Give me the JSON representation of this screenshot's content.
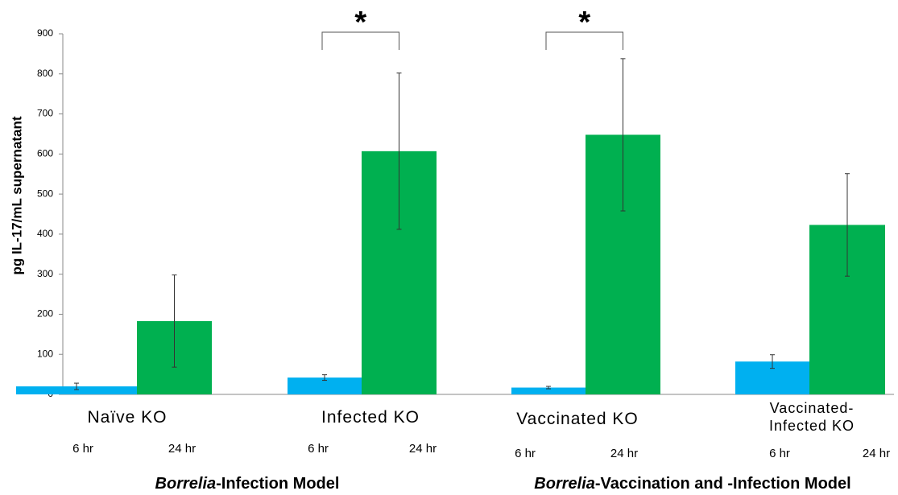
{
  "chart_data": {
    "type": "bar",
    "y_label": "pg IL-17/mL supernatant",
    "categories": [
      "Naïve KO",
      "Infected KO",
      "Vaccinated KO",
      "Vaccinated-Infected KO"
    ],
    "series": [
      {
        "name": "6 hr",
        "color": "#00b0f0",
        "values": [
          20,
          42,
          17,
          82
        ],
        "errors": [
          8,
          7,
          3,
          17
        ]
      },
      {
        "name": "24 hr",
        "color": "#00b050",
        "values": [
          183,
          607,
          648,
          423
        ],
        "errors": [
          115,
          195,
          190,
          128
        ]
      }
    ],
    "ylim": [
      0,
      900
    ],
    "yticks": [
      0,
      100,
      200,
      300,
      400,
      500,
      600,
      700,
      800,
      900
    ],
    "significance": [
      {
        "category": 1,
        "text": "*"
      },
      {
        "category": 2,
        "text": "*"
      }
    ],
    "model_labels": [
      {
        "italic": "Borrelia",
        "text": "-Infection Model"
      },
      {
        "italic": "Borrelia",
        "text": "-Vaccination and -Infection Model"
      }
    ]
  }
}
